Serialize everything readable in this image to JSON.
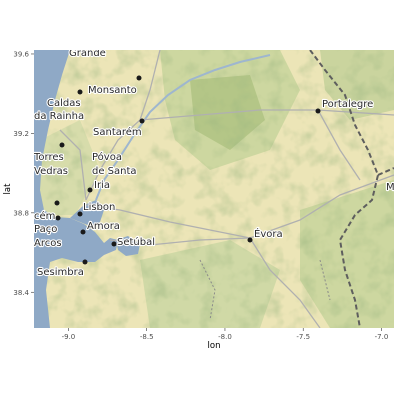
{
  "map": {
    "xlabel": "lon",
    "ylabel": "lat",
    "x_ticks": [
      -9.0,
      -8.5,
      -8.0,
      -7.5,
      -7.0
    ],
    "x_tick_labels": [
      "-9.0",
      "-8.5",
      "-8.0",
      "-7.5",
      "-7.0"
    ],
    "y_ticks": [
      38.4,
      38.8,
      39.2,
      39.6
    ],
    "y_tick_labels": [
      "38.4",
      "38.8",
      "39.2",
      "39.6"
    ],
    "xlim": [
      -9.22,
      -6.92
    ],
    "ylim": [
      38.22,
      39.62
    ],
    "colors": {
      "sea": "#8fa9c6",
      "land": "#ece5b7",
      "land_green": "#b9c98a",
      "forest": "#6f8f4e",
      "road": "#b5b5b5",
      "border": "#5e5e5e",
      "city_point": "#1a1a1a"
    },
    "labels": [
      {
        "name": "grande-label",
        "text": "Grande"
      },
      {
        "name": "monsanto-label",
        "text": "Monsanto"
      },
      {
        "name": "caldas-label",
        "text": "Caldas"
      },
      {
        "name": "rainha-label",
        "text": "da Rainha"
      },
      {
        "name": "santarem-label",
        "text": "Santarém"
      },
      {
        "name": "torres-label",
        "text": "Torres"
      },
      {
        "name": "vedras-label",
        "text": "Vedras"
      },
      {
        "name": "povoa-label",
        "text": "Póvoa"
      },
      {
        "name": "de-santa-label",
        "text": "de Santa"
      },
      {
        "name": "iria-label",
        "text": "Iria"
      },
      {
        "name": "portalegre-label",
        "text": "Portalegre"
      },
      {
        "name": "lisbon-label",
        "text": "Lisbon"
      },
      {
        "name": "cem-label",
        "text": "cém"
      },
      {
        "name": "amora-label",
        "text": "Amora"
      },
      {
        "name": "paco-label",
        "text": "Paço"
      },
      {
        "name": "arcos-label",
        "text": "Arcos"
      },
      {
        "name": "setubal-label",
        "text": "Setúbal"
      },
      {
        "name": "evora-label",
        "text": "Évora"
      },
      {
        "name": "sesimbra-label",
        "text": "Sesimbra"
      },
      {
        "name": "m-label",
        "text": "M"
      }
    ]
  }
}
